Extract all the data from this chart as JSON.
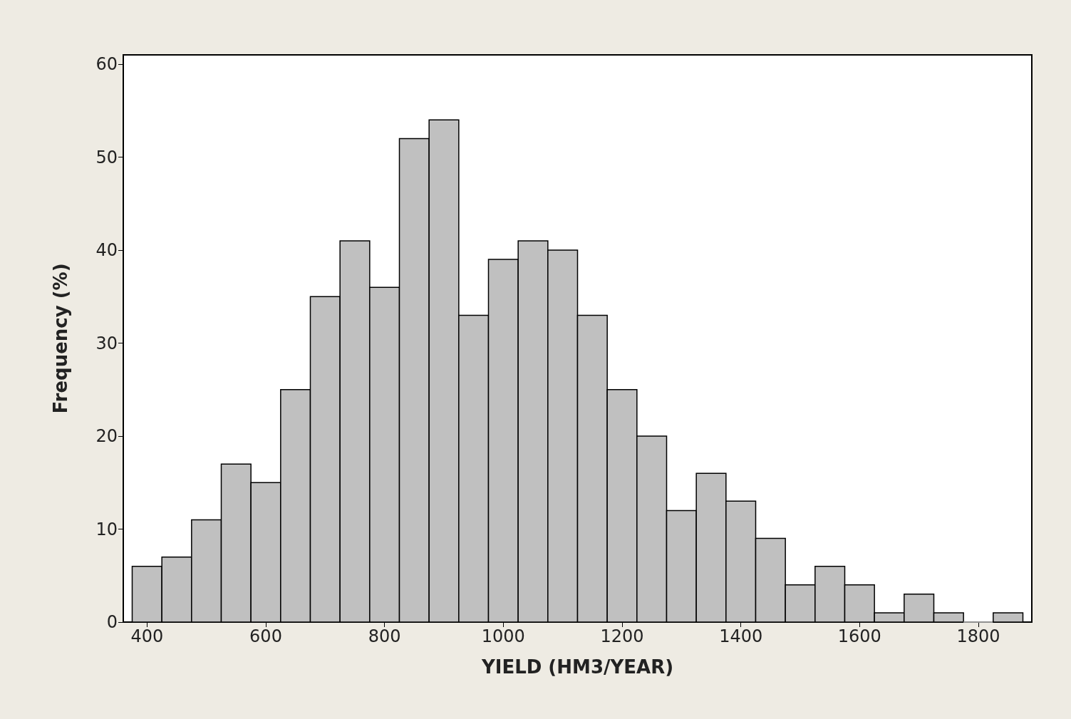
{
  "chart_data": {
    "type": "histogram",
    "xlabel": "YIELD (HM3/YEAR)",
    "ylabel": "Frequency (%)",
    "bins": [
      375,
      425,
      475,
      525,
      575,
      625,
      675,
      725,
      775,
      825,
      875,
      925,
      975,
      1025,
      1075,
      1125,
      1175,
      1225,
      1275,
      1325,
      1375,
      1425,
      1475,
      1525,
      1575,
      1625,
      1675,
      1725,
      1775,
      1825,
      1875
    ],
    "values": [
      6,
      7,
      11,
      17,
      15,
      25,
      35,
      41,
      36,
      52,
      54,
      33,
      39,
      41,
      40,
      33,
      25,
      20,
      12,
      16,
      13,
      9,
      4,
      6,
      4,
      1,
      3,
      1,
      0,
      1
    ],
    "color": "#c0c0c0",
    "xlim": [
      360,
      1890
    ],
    "xticks": [
      400,
      600,
      800,
      1000,
      1200,
      1400,
      1600,
      1800
    ],
    "ylim": [
      0,
      61
    ],
    "yticks": [
      0,
      10,
      20,
      30,
      40,
      50,
      60
    ],
    "grid": false,
    "legend": false
  }
}
